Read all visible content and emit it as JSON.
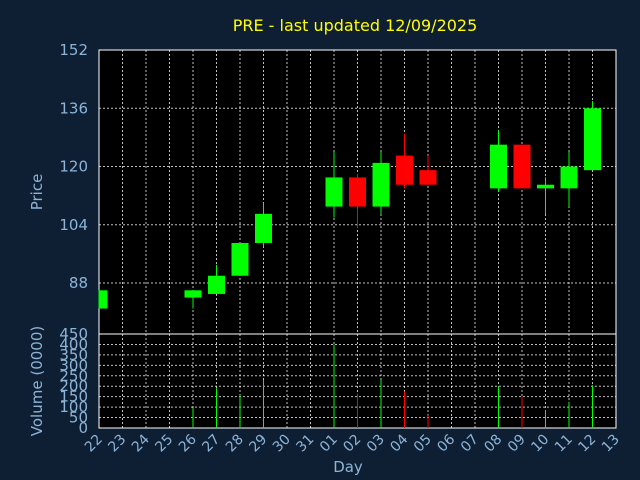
{
  "chart_data": {
    "type": "candlestick",
    "title": "PRE - last updated 12/09/2025",
    "xlabel": "Day",
    "colors": {
      "up": "#00ff00",
      "down": "#ff0000",
      "title": "#ffff00",
      "axis_text": "#8cb4d8",
      "background": "#0f1f33",
      "plot_bg": "#000000"
    },
    "x_ticks": [
      "22",
      "23",
      "24",
      "25",
      "26",
      "27",
      "28",
      "29",
      "30",
      "31",
      "01",
      "02",
      "03",
      "04",
      "05",
      "06",
      "07",
      "08",
      "09",
      "10",
      "11",
      "12",
      "13"
    ],
    "price_panel": {
      "ylabel": "Price",
      "ylim": [
        74,
        152
      ],
      "yticks": [
        88,
        104,
        120,
        136,
        152
      ],
      "grid": true
    },
    "volume_panel": {
      "ylabel": "Volume (0000)",
      "ylim": [
        0,
        450
      ],
      "yticks": [
        0,
        50,
        100,
        150,
        200,
        250,
        300,
        350,
        400,
        450
      ],
      "grid": true
    },
    "candles": [
      {
        "day": "22",
        "open": 81,
        "high": 86,
        "low": 81,
        "close": 86,
        "volume": 0
      },
      {
        "day": "26",
        "open": 84,
        "high": 86,
        "low": 81,
        "close": 86,
        "volume": 95
      },
      {
        "day": "27",
        "open": 85,
        "high": 93,
        "low": 85,
        "close": 90,
        "volume": 190
      },
      {
        "day": "28",
        "open": 90,
        "high": 99,
        "low": 90,
        "close": 99,
        "volume": 160
      },
      {
        "day": "29",
        "open": 99,
        "high": 110,
        "low": 98,
        "close": 107,
        "volume": 230
      },
      {
        "day": "01",
        "open": 109,
        "high": 124,
        "low": 106,
        "close": 117,
        "volume": 400
      },
      {
        "day": "02",
        "open": 117,
        "high": 118,
        "low": 103,
        "close": 109,
        "volume": 165
      },
      {
        "day": "03",
        "open": 109,
        "high": 124,
        "low": 107,
        "close": 121,
        "volume": 230
      },
      {
        "day": "04",
        "open": 123,
        "high": 129,
        "low": 114,
        "close": 115,
        "volume": 175
      },
      {
        "day": "05",
        "open": 119,
        "high": 123,
        "low": 115,
        "close": 115,
        "volume": 60
      },
      {
        "day": "08",
        "open": 114,
        "high": 130,
        "low": 113,
        "close": 126,
        "volume": 200
      },
      {
        "day": "09",
        "open": 126,
        "high": 126,
        "low": 114,
        "close": 114,
        "volume": 150
      },
      {
        "day": "10",
        "open": 114,
        "high": 117,
        "low": 107,
        "close": 115,
        "volume": 85
      },
      {
        "day": "11",
        "open": 114,
        "high": 124,
        "low": 109,
        "close": 120,
        "volume": 125
      },
      {
        "day": "12",
        "open": 119,
        "high": 138,
        "low": 119,
        "close": 136,
        "volume": 205
      }
    ]
  }
}
